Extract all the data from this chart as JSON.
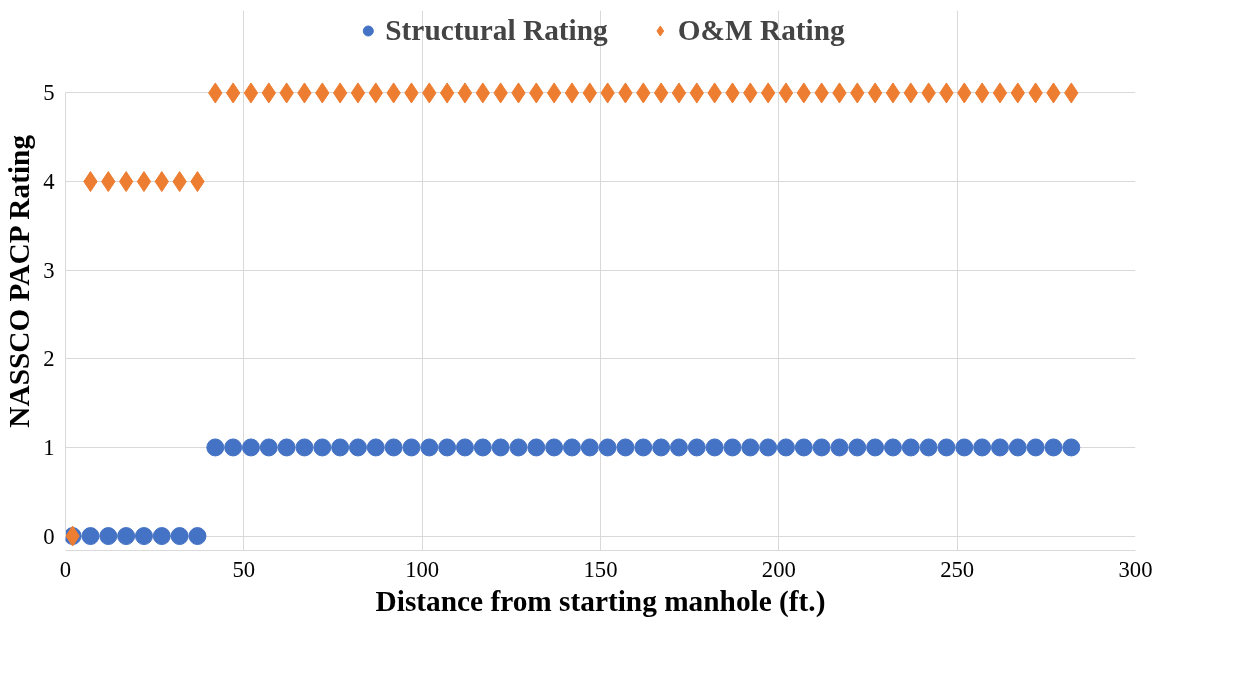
{
  "chart_data": {
    "type": "scatter",
    "xlabel": "Distance from starting manhole (ft.)",
    "ylabel": "NASSCO PACP Rating",
    "x": [
      2,
      7,
      12,
      17,
      22,
      27,
      32,
      37,
      42,
      47,
      52,
      57,
      62,
      67,
      72,
      77,
      82,
      87,
      92,
      97,
      102,
      107,
      112,
      117,
      122,
      127,
      132,
      137,
      142,
      147,
      152,
      157,
      162,
      167,
      172,
      177,
      182,
      187,
      192,
      197,
      202,
      207,
      212,
      217,
      222,
      227,
      232,
      237,
      242,
      247,
      252,
      257,
      262,
      267,
      272,
      277,
      282
    ],
    "series": [
      {
        "name": "Structural Rating",
        "color": "#4472c4",
        "marker": "circle",
        "values": [
          0,
          0,
          0,
          0,
          0,
          0,
          0,
          0,
          1,
          1,
          1,
          1,
          1,
          1,
          1,
          1,
          1,
          1,
          1,
          1,
          1,
          1,
          1,
          1,
          1,
          1,
          1,
          1,
          1,
          1,
          1,
          1,
          1,
          1,
          1,
          1,
          1,
          1,
          1,
          1,
          1,
          1,
          1,
          1,
          1,
          1,
          1,
          1,
          1,
          1,
          1,
          1,
          1,
          1,
          1,
          1,
          1
        ]
      },
      {
        "name": "O&M Rating",
        "color": "#ed7d31",
        "marker": "diamond",
        "values": [
          0,
          4,
          4,
          4,
          4,
          4,
          4,
          4,
          5,
          5,
          5,
          5,
          5,
          5,
          5,
          5,
          5,
          5,
          5,
          5,
          5,
          5,
          5,
          5,
          5,
          5,
          5,
          5,
          5,
          5,
          5,
          5,
          5,
          5,
          5,
          5,
          5,
          5,
          5,
          5,
          5,
          5,
          5,
          5,
          5,
          5,
          5,
          5,
          5,
          5,
          5,
          5,
          5,
          5,
          5,
          5,
          5
        ]
      }
    ],
    "xlim": [
      0,
      300
    ],
    "xticks": [
      0,
      50,
      100,
      150,
      200,
      250,
      300
    ],
    "ylim": [
      0,
      5
    ],
    "yticks": [
      0,
      1,
      2,
      3,
      4,
      5
    ],
    "grid": true,
    "legend": "top"
  }
}
